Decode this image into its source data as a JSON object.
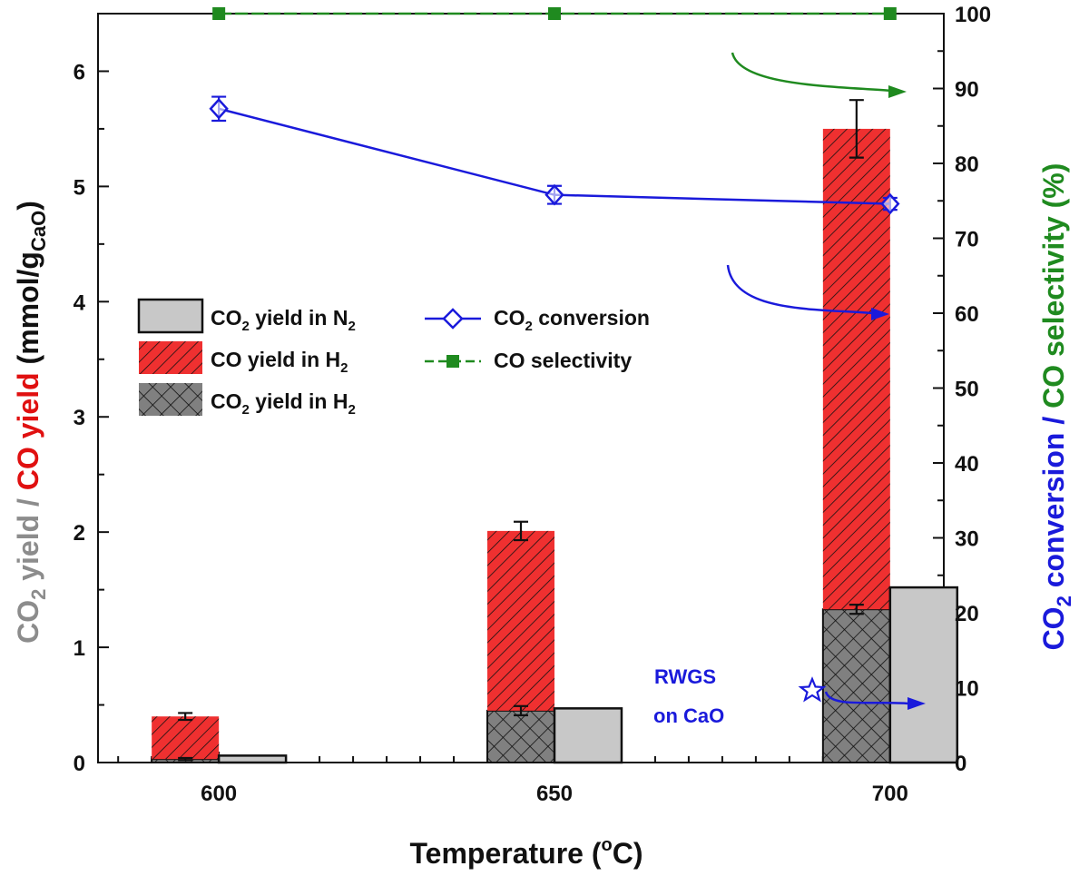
{
  "chart_data": {
    "type": "bar",
    "categories": [
      "600",
      "650",
      "700"
    ],
    "x": [
      600,
      650,
      700
    ],
    "xlabel_main": "Temperature (",
    "xlabel_sup": "o",
    "xlabel_end": "C)",
    "xlim": [
      582,
      708
    ],
    "ylim_left": [
      0,
      6.5
    ],
    "left_ticks": [
      "0",
      "1",
      "2",
      "3",
      "4",
      "5",
      "6"
    ],
    "ylim_right": [
      0,
      100
    ],
    "right_ticks": [
      "0",
      "10",
      "20",
      "30",
      "40",
      "50",
      "60",
      "70",
      "80",
      "90",
      "100"
    ],
    "ylabel_left": {
      "part1_main": "CO",
      "part1_sub": "2",
      "part1_rest": " yield / ",
      "part2": "CO yield",
      "part3_main": " (mmol/g",
      "part3_sub": "CaO",
      "part3_end": ")"
    },
    "ylabel_right": {
      "part1_main": "CO",
      "part1_sub": "2",
      "part1_rest": " conversion / ",
      "part2": "CO selectivity (%)"
    },
    "series": [
      {
        "name": "CO2 yield in N2",
        "kind": "bar",
        "axis": "left",
        "values": [
          0.06,
          0.47,
          1.52
        ]
      },
      {
        "name": "CO yield in H2",
        "kind": "stacked-bar",
        "axis": "left",
        "values": [
          0.37,
          1.56,
          4.17
        ],
        "error": [
          0.03,
          0.08,
          0.25
        ]
      },
      {
        "name": "CO2 yield in H2",
        "kind": "bar",
        "axis": "left",
        "values": [
          0.03,
          0.45,
          1.33
        ],
        "error": [
          0.01,
          0.04,
          0.04
        ]
      },
      {
        "name": "CO2 conversion",
        "kind": "line",
        "axis": "right",
        "x": [
          600,
          650,
          700
        ],
        "values": [
          87.3,
          75.8,
          74.6
        ],
        "error": [
          1.6,
          1.2,
          0.8
        ]
      },
      {
        "name": "CO selectivity",
        "kind": "line",
        "axis": "right",
        "x": [
          600,
          650,
          700
        ],
        "values": [
          100,
          100,
          100
        ]
      }
    ],
    "legend": {
      "placement": "center-left",
      "items": [
        {
          "main": "CO",
          "sub": "2",
          "mid": " yield in N",
          "sub2": "2"
        },
        {
          "main": "CO yield in H",
          "sub": "2",
          "mid": "",
          "sub2": ""
        },
        {
          "main": "CO",
          "sub": "2",
          "mid": " yield in H",
          "sub2": "2"
        }
      ],
      "line_items": [
        {
          "main": "CO",
          "sub": "2",
          "mid": " conversion"
        },
        {
          "main": "CO selectivity",
          "sub": "",
          "mid": ""
        }
      ]
    },
    "annotation": {
      "line1": "RWGS",
      "line2": "on CaO"
    },
    "colors": {
      "gray_bar": "#c8c8c8",
      "red_bar": "#ef3030",
      "dark_bar": "#808080",
      "blue": "#1a1adb",
      "green": "#1f8a1f",
      "gray_text": "#8c8c8c",
      "red_text": "#e01010"
    }
  }
}
